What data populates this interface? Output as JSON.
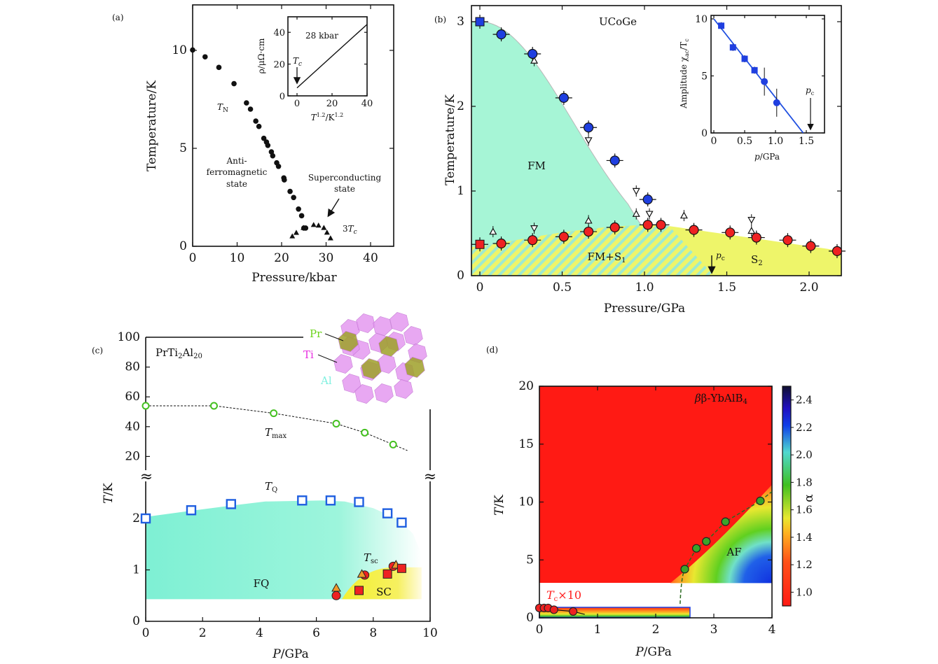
{
  "chart_data": [
    {
      "panel": "(a)",
      "type": "scatter",
      "xlabel": "Pressure/kbar",
      "ylabel": "Temperature/K",
      "xlim": [
        0,
        45
      ],
      "ylim": [
        0,
        12.4
      ],
      "xticks": [
        "0",
        "10",
        "20",
        "30",
        "40"
      ],
      "yticks": [
        "0",
        "5",
        "10"
      ],
      "series": [
        {
          "name": "T_N",
          "marker": "filled-circle",
          "points": [
            [
              0,
              10.02
            ],
            [
              2.8,
              9.67
            ],
            [
              5.9,
              9.13
            ],
            [
              9.3,
              8.3
            ],
            [
              12.1,
              7.32
            ],
            [
              13,
              7.0
            ],
            [
              14.2,
              6.39
            ],
            [
              14.9,
              6.12
            ],
            [
              16,
              5.51
            ],
            [
              16.6,
              5.32
            ],
            [
              16.9,
              5.15
            ],
            [
              17.7,
              4.82
            ],
            [
              18,
              4.62
            ],
            [
              18.9,
              4.26
            ],
            [
              19.3,
              4.08
            ],
            [
              20.5,
              3.49
            ],
            [
              20.6,
              3.39
            ],
            [
              21.9,
              2.8
            ],
            [
              22.7,
              2.49
            ],
            [
              23.8,
              1.9
            ],
            [
              24.5,
              1.56
            ],
            [
              25,
              0.93
            ],
            [
              25.4,
              0.93
            ]
          ]
        },
        {
          "name": "3T_c",
          "marker": "filled-triangle",
          "points": [
            [
              22.4,
              0.52
            ],
            [
              23.3,
              0.7
            ],
            [
              24.9,
              0.95
            ],
            [
              27.2,
              1.1
            ],
            [
              28.3,
              1.07
            ],
            [
              29.5,
              0.95
            ],
            [
              30.2,
              0.71
            ],
            [
              31,
              0.42
            ]
          ]
        }
      ],
      "annotations": {
        "tn_T": "T",
        "tn_sub": "N",
        "afm1": "Anti-",
        "afm2": "ferromagnetic",
        "afm3": "state",
        "sc1": "Superconducting",
        "sc2": "state",
        "tc3_pre": "3",
        "tc3_T": "T",
        "tc3_sub": "c"
      },
      "inset": {
        "type": "line",
        "title": "28 kbar",
        "ylabel": "ρ/μΩ·cm",
        "xlabel_T": "T",
        "xlabel_e1": "1.2",
        "xlabel_mid": "/K",
        "xlabel_e2": "1.2",
        "xticks": [
          "0",
          "20",
          "40"
        ],
        "yticks": [
          "0",
          "20",
          "40"
        ],
        "line": [
          [
            0,
            5
          ],
          [
            40,
            45
          ]
        ],
        "tc_T": "T",
        "tc_sub": "c"
      }
    },
    {
      "panel": "(b)",
      "type": "scatter",
      "title": "UCoGe",
      "xlabel": "Pressure/GPa",
      "ylabel": "Temperature/K",
      "xlim": [
        -0.03,
        2.2
      ],
      "ylim": [
        0,
        3.18
      ],
      "xticks": [
        "0",
        "0.5",
        "1.0",
        "1.5",
        "2.0"
      ],
      "yticks": [
        "0",
        "1",
        "2",
        "3"
      ],
      "regions": {
        "fm": "FM",
        "fm_s1": "FM+S",
        "fm_s1_sub": "1",
        "s2": "S",
        "s2_sub": "2",
        "pc": "p",
        "pc_sub": "c"
      },
      "series": [
        {
          "name": "T_Curie",
          "color": "#1f3fe0",
          "points": [
            [
              0,
              3.0
            ],
            [
              0.13,
              2.85
            ],
            [
              0.32,
              2.62
            ],
            [
              0.51,
              2.1
            ],
            [
              0.66,
              1.75
            ],
            [
              0.82,
              1.36
            ],
            [
              1.02,
              0.9
            ]
          ]
        },
        {
          "name": "T_sc",
          "color": "#ee2222",
          "points": [
            [
              0,
              0.37
            ],
            [
              0.13,
              0.38
            ],
            [
              0.32,
              0.42
            ],
            [
              0.51,
              0.46
            ],
            [
              0.66,
              0.52
            ],
            [
              0.82,
              0.57
            ],
            [
              1.02,
              0.6
            ],
            [
              1.1,
              0.6
            ],
            [
              1.3,
              0.54
            ],
            [
              1.52,
              0.51
            ],
            [
              1.68,
              0.45
            ],
            [
              1.87,
              0.42
            ],
            [
              2.01,
              0.35
            ],
            [
              2.17,
              0.29
            ]
          ]
        },
        {
          "name": "open-triangles",
          "color": "#ffffff",
          "points": [
            [
              0.08,
              0.52
            ],
            [
              0.33,
              0.56
            ],
            [
              0.33,
              2.54
            ],
            [
              0.66,
              1.6
            ],
            [
              0.66,
              0.65
            ],
            [
              0.95,
              1.0
            ],
            [
              0.95,
              0.73
            ],
            [
              1.03,
              0.73
            ],
            [
              1.24,
              0.71
            ],
            [
              1.65,
              0.66
            ],
            [
              1.65,
              0.53
            ]
          ]
        }
      ],
      "inset": {
        "type": "scatter",
        "xlabel_p": "p",
        "xlabel_rest": "/GPa",
        "ylabel_pre": "Amplitude χ",
        "ylabel_sub": "ac",
        "ylabel_mid": "/T",
        "ylabel_sub2": "c",
        "xticks": [
          "0",
          "0.5",
          "1.0",
          "1.5"
        ],
        "yticks": [
          "0",
          "5",
          "10"
        ],
        "xlim": [
          0,
          1.7
        ],
        "ylim": [
          0,
          10
        ],
        "points": [
          [
            0.12,
            9.4
          ],
          [
            0.31,
            7.5
          ],
          [
            0.5,
            6.5
          ],
          [
            0.66,
            5.5
          ],
          [
            0.82,
            4.5
          ],
          [
            1.02,
            2.65
          ]
        ],
        "fit": [
          [
            0,
            10
          ],
          [
            1.45,
            0
          ]
        ],
        "pc": "p",
        "pc_sub": "c"
      }
    },
    {
      "panel": "(c)",
      "type": "scatter",
      "title_pre": "PrTi",
      "title_s1": "2",
      "title_mid": "Al",
      "title_s2": "20",
      "xlabel_P": "P",
      "xlabel_rest": "/GPa",
      "ylabel_T": "T",
      "ylabel_rest": "/K",
      "xticks": [
        "0",
        "2",
        "4",
        "6",
        "8",
        "10"
      ],
      "yticks_upper": [
        "20",
        "40",
        "60",
        "80",
        "100"
      ],
      "yticks_lower": [
        "0",
        "1",
        "2"
      ],
      "crystal_labels": {
        "pr": "Pr",
        "ti": "Ti",
        "al": "Al"
      },
      "regions": {
        "fq": "FQ",
        "sc": "SC",
        "tmax_T": "T",
        "tmax_sub": "max",
        "tq_T": "T",
        "tq_sub": "Q",
        "tsc_T": "T",
        "tsc_sub": "sc"
      },
      "series": [
        {
          "name": "T_max",
          "axis": "upper",
          "points": [
            [
              0,
              54
            ],
            [
              2.4,
              54
            ],
            [
              4.5,
              49
            ],
            [
              6.7,
              42
            ],
            [
              7.7,
              36
            ],
            [
              8.7,
              28
            ]
          ]
        },
        {
          "name": "T_Q",
          "axis": "lower",
          "points": [
            [
              0,
              2.0
            ],
            [
              1.6,
              2.16
            ],
            [
              3.0,
              2.28
            ],
            [
              5.5,
              2.35
            ],
            [
              6.5,
              2.35
            ],
            [
              7.5,
              2.32
            ],
            [
              8.5,
              2.1
            ],
            [
              9.0,
              1.92
            ]
          ]
        },
        {
          "name": "T_sc-triangle",
          "axis": "lower",
          "points": [
            [
              6.7,
              0.65
            ],
            [
              7.6,
              0.92
            ],
            [
              8.8,
              1.1
            ]
          ]
        },
        {
          "name": "T_sc-circle",
          "axis": "lower",
          "points": [
            [
              6.7,
              0.5
            ],
            [
              7.7,
              0.9
            ],
            [
              8.7,
              1.07
            ]
          ]
        },
        {
          "name": "T_sc-square",
          "axis": "lower",
          "points": [
            [
              7.5,
              0.6
            ],
            [
              8.5,
              0.92
            ],
            [
              9.0,
              1.03
            ]
          ]
        }
      ]
    },
    {
      "panel": "(d)",
      "type": "heatmap",
      "title_pre": "β-YbAlB",
      "title_sub": "4",
      "xlabel_P": "P",
      "xlabel_rest": "/GPa",
      "ylabel_T": "T",
      "ylabel_rest": "/K",
      "xlim": [
        0,
        4
      ],
      "ylim": [
        0,
        20
      ],
      "xticks": [
        "0",
        "1",
        "2",
        "3",
        "4"
      ],
      "yticks": [
        "0",
        "5",
        "10",
        "15",
        "20"
      ],
      "colorbar": {
        "label": "α",
        "range": [
          0.9,
          2.5
        ],
        "ticks": [
          "1.0",
          "1.2",
          "1.4",
          "1.6",
          "1.8",
          "2.0",
          "2.2",
          "2.4"
        ]
      },
      "regions": {
        "af": "AF",
        "tc_T": "T",
        "tc_sub": "c",
        "tc_rest": "×10"
      },
      "series": [
        {
          "name": "T_N",
          "color": "#3aa52a",
          "points": [
            [
              2.5,
              4.2
            ],
            [
              2.7,
              6.0
            ],
            [
              2.87,
              6.6
            ],
            [
              3.2,
              8.3
            ],
            [
              3.8,
              10.1
            ]
          ]
        },
        {
          "name": "T_c×10",
          "color": "#ee2222",
          "points": [
            [
              0,
              0.85
            ],
            [
              0.08,
              0.85
            ],
            [
              0.15,
              0.85
            ],
            [
              0.25,
              0.7
            ],
            [
              0.58,
              0.55
            ]
          ]
        }
      ]
    }
  ]
}
